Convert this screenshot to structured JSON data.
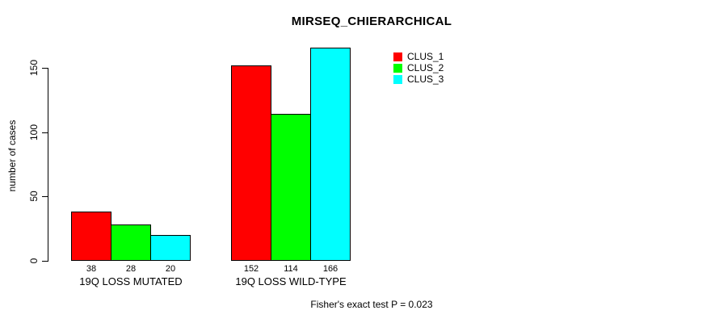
{
  "chart_data": {
    "type": "bar",
    "title": "MIRSEQ_CHIERARCHICAL",
    "ylabel": "number of cases",
    "xlabel": "",
    "categories": [
      "19Q LOSS MUTATED",
      "19Q LOSS WILD-TYPE"
    ],
    "series": [
      {
        "name": "CLUS_1",
        "color": "#ff0000",
        "values": [
          38,
          152
        ]
      },
      {
        "name": "CLUS_2",
        "color": "#00ff00",
        "values": [
          28,
          114
        ]
      },
      {
        "name": "CLUS_3",
        "color": "#00ffff",
        "values": [
          20,
          166
        ]
      }
    ],
    "yticks": [
      0,
      50,
      100,
      150
    ],
    "ylim": [
      0,
      166
    ],
    "show_value_labels": true,
    "value_labels": [
      [
        38,
        28,
        20
      ],
      [
        152,
        114,
        166
      ]
    ],
    "grid": false,
    "legend_position": "top-right",
    "legend_entries": [
      "CLUS_1",
      "CLUS_2",
      "CLUS_3"
    ],
    "annotation": "Fisher's exact test P = 0.023",
    "axis_color": "#000000",
    "bar_border_color": "#000000",
    "background_color": "#ffffff"
  }
}
